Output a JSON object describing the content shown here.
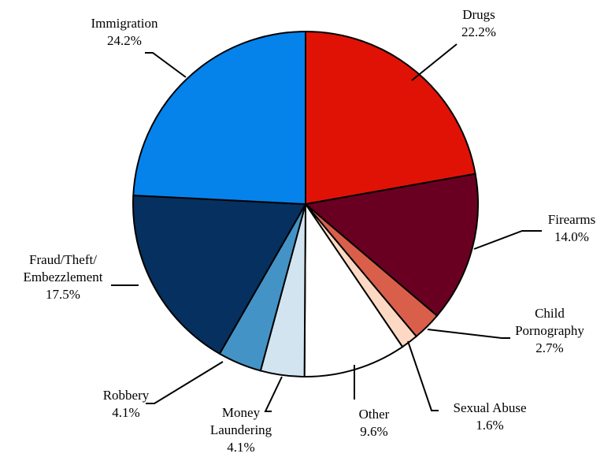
{
  "chart_data": {
    "type": "pie",
    "slices": [
      {
        "label": [
          "Drugs"
        ],
        "pct_label": "22.2%",
        "value": 22.2,
        "color": "#e01206"
      },
      {
        "label": [
          "Firearms"
        ],
        "pct_label": "14.0%",
        "value": 14.0,
        "color": "#6a0021"
      },
      {
        "label": [
          "Child",
          "Pornography"
        ],
        "pct_label": "2.7%",
        "value": 2.7,
        "color": "#d95f4b"
      },
      {
        "label": [
          "Sexual Abuse"
        ],
        "pct_label": "1.6%",
        "value": 1.6,
        "color": "#fdd9c4"
      },
      {
        "label": [
          "Other"
        ],
        "pct_label": "9.6%",
        "value": 9.6,
        "color": "#ffffff"
      },
      {
        "label": [
          "Money",
          "Laundering"
        ],
        "pct_label": "4.1%",
        "value": 4.1,
        "color": "#d2e4f0"
      },
      {
        "label": [
          "Robbery"
        ],
        "pct_label": "4.1%",
        "value": 4.1,
        "color": "#4393c6"
      },
      {
        "label": [
          "Fraud/Theft/",
          "Embezzlement"
        ],
        "pct_label": "17.5%",
        "value": 17.5,
        "color": "#06305f"
      },
      {
        "label": [
          "Immigration"
        ],
        "pct_label": "24.2%",
        "value": 24.2,
        "color": "#0583eb"
      }
    ],
    "start_angle": "12 o'clock",
    "direction": "clockwise",
    "legend": "none"
  }
}
